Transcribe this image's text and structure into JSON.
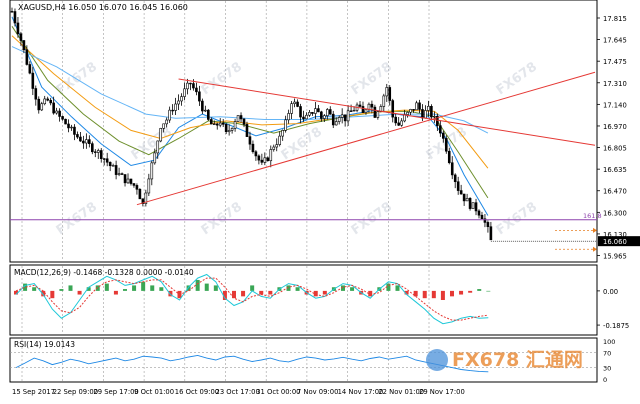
{
  "header": {
    "symbol_line": "XAGUSD,H4  16.050 16.070 16.045 16.060"
  },
  "colors": {
    "background": "#ffffff",
    "candle": "#000000",
    "grid": "#9e9e9e",
    "trendline": "#e53935",
    "fib_line": "#8e44ad",
    "ma_fast": "#1e88e5",
    "ma_mid": "#6d8f2c",
    "ma_slow": "#f39c12",
    "ma_long": "#64b5f6",
    "macd_pos": "#3aa655",
    "macd_neg": "#e53935",
    "macd_signal": "#e53935",
    "macd_line": "#1ec8d8",
    "rsi_line": "#1e88e5",
    "price_tag_bg": "#000000",
    "price_tag_fg": "#ffffff"
  },
  "chart_data": [
    {
      "type": "candlestick",
      "title": "XAGUSD,H4",
      "ohlc_last": {
        "open": 16.05,
        "high": 16.07,
        "low": 16.045,
        "close": 16.06
      },
      "ylim": [
        15.965,
        17.815
      ],
      "y_ticks": [
        "17.815",
        "17.645",
        "17.475",
        "17.310",
        "17.140",
        "16.970",
        "16.805",
        "16.635",
        "16.470",
        "16.300",
        "16.130",
        "15.965"
      ],
      "current_price": "16.060",
      "fib_level": {
        "label": "161.8",
        "value": 16.218
      },
      "x_ticks": [
        "15 Sep 2017",
        "22 Sep 09:00",
        "29 Sep 17:00",
        "9 Oct 01:00",
        "16 Oct 09:00",
        "23 Oct 17:00",
        "31 Oct 00:00",
        "7 Nov 09:00",
        "14 Nov 17:00",
        "22 Nov 01:00",
        "29 Nov 17:00"
      ],
      "close_path": [
        [
          0,
          17.76
        ],
        [
          3,
          17.55
        ],
        [
          6,
          17.3
        ],
        [
          9,
          17.05
        ],
        [
          12,
          17.1
        ],
        [
          15,
          17.0
        ],
        [
          18,
          16.93
        ],
        [
          21,
          16.85
        ],
        [
          24,
          16.8
        ],
        [
          27,
          16.75
        ],
        [
          30,
          16.7
        ],
        [
          33,
          16.62
        ],
        [
          36,
          16.55
        ],
        [
          39,
          16.5
        ],
        [
          42,
          16.46
        ],
        [
          44,
          16.33
        ],
        [
          46,
          16.55
        ],
        [
          48,
          16.7
        ],
        [
          50,
          16.92
        ],
        [
          52,
          16.96
        ],
        [
          54,
          17.05
        ],
        [
          56,
          17.1
        ],
        [
          58,
          17.17
        ],
        [
          60,
          17.23
        ],
        [
          62,
          17.15
        ],
        [
          64,
          17.05
        ],
        [
          66,
          16.95
        ],
        [
          68,
          16.9
        ],
        [
          70,
          16.95
        ],
        [
          72,
          16.85
        ],
        [
          74,
          16.92
        ],
        [
          76,
          17.0
        ],
        [
          78,
          16.9
        ],
        [
          80,
          16.8
        ],
        [
          82,
          16.7
        ],
        [
          84,
          16.62
        ],
        [
          86,
          16.68
        ],
        [
          88,
          16.77
        ],
        [
          90,
          16.82
        ],
        [
          92,
          16.93
        ],
        [
          94,
          17.1
        ],
        [
          96,
          17.05
        ],
        [
          98,
          16.95
        ],
        [
          100,
          16.99
        ],
        [
          102,
          17.05
        ],
        [
          104,
          16.97
        ],
        [
          106,
          17.03
        ],
        [
          108,
          16.95
        ],
        [
          110,
          17.0
        ],
        [
          112,
          16.97
        ],
        [
          114,
          17.02
        ],
        [
          116,
          17.06
        ],
        [
          118,
          17.0
        ],
        [
          120,
          17.1
        ],
        [
          122,
          17.0
        ],
        [
          124,
          17.08
        ],
        [
          126,
          17.2
        ],
        [
          128,
          16.98
        ],
        [
          130,
          16.92
        ],
        [
          132,
          16.98
        ],
        [
          134,
          17.02
        ],
        [
          136,
          17.07
        ],
        [
          138,
          17.0
        ],
        [
          140,
          17.03
        ],
        [
          142,
          16.96
        ],
        [
          144,
          16.88
        ],
        [
          146,
          16.75
        ],
        [
          148,
          16.58
        ],
        [
          150,
          16.45
        ],
        [
          152,
          16.38
        ],
        [
          154,
          16.33
        ],
        [
          156,
          16.3
        ],
        [
          158,
          16.25
        ],
        [
          160,
          16.14
        ],
        [
          161,
          16.06
        ]
      ],
      "moving_averages": [
        {
          "color_key": "ma_fast",
          "values": [
            [
              0,
              17.72
            ],
            [
              10,
              17.2
            ],
            [
              20,
              16.98
            ],
            [
              30,
              16.78
            ],
            [
              40,
              16.62
            ],
            [
              48,
              16.66
            ],
            [
              56,
              16.9
            ],
            [
              64,
              17.0
            ],
            [
              72,
              16.93
            ],
            [
              82,
              16.84
            ],
            [
              92,
              16.9
            ],
            [
              102,
              16.98
            ],
            [
              112,
              16.99
            ],
            [
              122,
              17.03
            ],
            [
              132,
              16.99
            ],
            [
              140,
              16.98
            ],
            [
              146,
              16.82
            ],
            [
              152,
              16.55
            ],
            [
              160,
              16.25
            ]
          ]
        },
        {
          "color_key": "ma_mid",
          "values": [
            [
              0,
              17.65
            ],
            [
              12,
              17.25
            ],
            [
              24,
              17.0
            ],
            [
              36,
              16.8
            ],
            [
              46,
              16.7
            ],
            [
              56,
              16.82
            ],
            [
              66,
              16.95
            ],
            [
              76,
              16.93
            ],
            [
              88,
              16.86
            ],
            [
              100,
              16.93
            ],
            [
              112,
              16.98
            ],
            [
              124,
              17.02
            ],
            [
              134,
              17.02
            ],
            [
              142,
              16.98
            ],
            [
              150,
              16.72
            ],
            [
              160,
              16.38
            ]
          ]
        },
        {
          "color_key": "ma_slow",
          "values": [
            [
              0,
              17.58
            ],
            [
              14,
              17.3
            ],
            [
              28,
              17.05
            ],
            [
              40,
              16.88
            ],
            [
              50,
              16.82
            ],
            [
              60,
              16.9
            ],
            [
              72,
              16.95
            ],
            [
              84,
              16.92
            ],
            [
              96,
              16.93
            ],
            [
              108,
              16.97
            ],
            [
              120,
              17.01
            ],
            [
              132,
              17.03
            ],
            [
              142,
              17.02
            ],
            [
              150,
              16.88
            ],
            [
              160,
              16.6
            ]
          ]
        },
        {
          "color_key": "ma_long",
          "values": [
            [
              0,
              17.5
            ],
            [
              15,
              17.35
            ],
            [
              30,
              17.15
            ],
            [
              45,
              17.0
            ],
            [
              55,
              16.97
            ],
            [
              70,
              16.98
            ],
            [
              85,
              16.96
            ],
            [
              100,
              16.96
            ],
            [
              115,
              16.98
            ],
            [
              130,
              17.0
            ],
            [
              142,
              17.0
            ],
            [
              152,
              16.95
            ],
            [
              160,
              16.86
            ]
          ]
        }
      ],
      "trendlines": [
        {
          "from": [
            42,
            16.33
          ],
          "to": [
            196,
            17.31
          ]
        },
        {
          "from": [
            56,
            17.26
          ],
          "to": [
            196,
            16.77
          ]
        }
      ]
    },
    {
      "type": "histogram",
      "title": "MACD(12,26,9) -0.1468 -0.1328 0.0000 -0.0140",
      "ylim": [
        -0.22,
        0.12
      ],
      "y_ticks": [
        "0.00",
        "-0.1875"
      ],
      "histogram": [
        -0.02,
        0.04,
        0.02,
        -0.03,
        -0.04,
        0.01,
        0.03,
        -0.02,
        0.02,
        0.03,
        0.04,
        -0.02,
        0.01,
        0.03,
        0.05,
        0.03,
        0.02,
        -0.03,
        -0.04,
        0.03,
        0.06,
        0.04,
        0.03,
        -0.05,
        -0.04,
        -0.03,
        0.03,
        -0.02,
        -0.02,
        0.02,
        0.03,
        0.02,
        -0.02,
        -0.03,
        -0.02,
        0.02,
        0.03,
        0.02,
        -0.02,
        -0.03,
        0.02,
        0.04,
        0.03,
        -0.02,
        -0.03,
        -0.04,
        -0.04,
        -0.05,
        -0.03,
        -0.02,
        -0.01,
        0.01,
        0.0
      ],
      "macd_line": [
        -0.02,
        0.03,
        0.04,
        -0.02,
        -0.1,
        -0.15,
        -0.12,
        -0.05,
        0.02,
        0.05,
        0.08,
        0.06,
        0.03,
        0.04,
        0.06,
        0.08,
        0.05,
        -0.02,
        -0.05,
        0.02,
        0.07,
        0.09,
        0.05,
        -0.04,
        -0.08,
        -0.06,
        0.0,
        -0.03,
        -0.04,
        0.01,
        0.04,
        0.03,
        -0.01,
        -0.04,
        -0.03,
        0.01,
        0.04,
        0.03,
        -0.01,
        -0.04,
        0.01,
        0.05,
        0.04,
        -0.02,
        -0.06,
        -0.1,
        -0.15,
        -0.18,
        -0.17,
        -0.15,
        -0.14,
        -0.15,
        -0.147
      ],
      "signal_line": [
        0.0,
        0.02,
        0.03,
        0.0,
        -0.06,
        -0.11,
        -0.12,
        -0.09,
        -0.03,
        0.02,
        0.05,
        0.06,
        0.05,
        0.04,
        0.05,
        0.06,
        0.06,
        0.02,
        -0.02,
        0.0,
        0.04,
        0.07,
        0.07,
        0.02,
        -0.04,
        -0.06,
        -0.03,
        -0.02,
        -0.03,
        -0.01,
        0.02,
        0.03,
        0.01,
        -0.02,
        -0.03,
        -0.01,
        0.02,
        0.03,
        0.01,
        -0.02,
        -0.01,
        0.03,
        0.04,
        0.01,
        -0.03,
        -0.07,
        -0.11,
        -0.14,
        -0.16,
        -0.16,
        -0.15,
        -0.14,
        -0.133
      ]
    },
    {
      "type": "line",
      "title": "RSI(14) 19.0143",
      "ylim": [
        0,
        100
      ],
      "y_ticks": [
        "100",
        "70",
        "30",
        "0"
      ],
      "values": [
        30,
        42,
        55,
        48,
        38,
        44,
        52,
        47,
        40,
        45,
        50,
        55,
        48,
        52,
        60,
        58,
        55,
        48,
        52,
        58,
        62,
        55,
        50,
        58,
        60,
        52,
        46,
        50,
        55,
        48,
        45,
        52,
        58,
        55,
        50,
        53,
        57,
        52,
        48,
        54,
        58,
        52,
        56,
        60,
        50,
        45,
        40,
        35,
        30,
        25,
        22,
        20,
        19
      ]
    }
  ],
  "watermarks": [
    {
      "label": "FX678"
    },
    {
      "label": "FX678"
    },
    {
      "label": "FX678"
    },
    {
      "label": "FX678"
    },
    {
      "label": "FX678"
    },
    {
      "label": "FX678"
    },
    {
      "label": "FX678"
    },
    {
      "label": "FX678"
    },
    {
      "label": "FX678"
    },
    {
      "label": "FX678"
    },
    {
      "label": "FX678"
    }
  ],
  "brand": {
    "text": "FX678 汇通网"
  }
}
